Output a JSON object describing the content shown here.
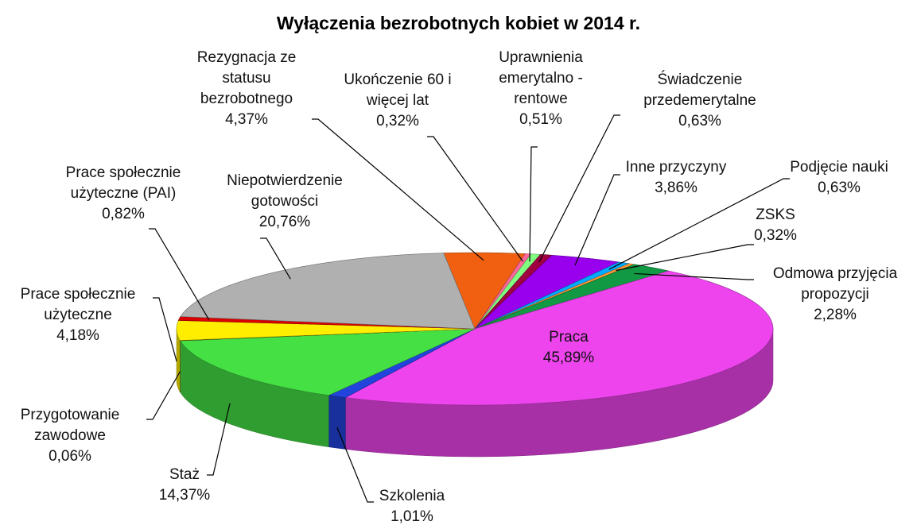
{
  "chart_data": {
    "type": "pie3d",
    "title": "Wyłączenia bezrobotnych kobiet w 2014 r.",
    "categories": [
      "Rezygnacja ze statusu bezrobotnego",
      "Ukończenie 60 i więcej lat",
      "Uprawnienia emerytalno - rentowe",
      "Świadczenie przedemerytalne",
      "Inne przyczyny",
      "Podjęcie nauki",
      "ZSKS",
      "Odmowa przyjęcia propozycji",
      "Praca",
      "Szkolenia",
      "Staż",
      "Przygotowanie zawodowe",
      "Prace społecznie użyteczne",
      "Prace społecznie użyteczne  (PAI)",
      "Niepotwierdzenie gotowości"
    ],
    "values": [
      4.37,
      0.32,
      0.51,
      0.63,
      3.86,
      0.63,
      0.32,
      2.28,
      45.89,
      1.01,
      14.37,
      0.06,
      4.18,
      0.82,
      20.76
    ],
    "value_labels": [
      "4,37%",
      "0,32%",
      "0,51%",
      "0,63%",
      "3,86%",
      "0,63%",
      "0,32%",
      "2,28%",
      "45,89%",
      "1,01%",
      "14,37%",
      "0,06%",
      "4,18%",
      "0,82%",
      "20,76%"
    ],
    "colors": [
      "#f06010",
      "#ff6699",
      "#80ff80",
      "#a00040",
      "#9900ee",
      "#00aaff",
      "#ff9933",
      "#119944",
      "#ee44ee",
      "#2244dd",
      "#44e044",
      "#222222",
      "#ffee00",
      "#dd0000",
      "#b0b0b0"
    ]
  }
}
